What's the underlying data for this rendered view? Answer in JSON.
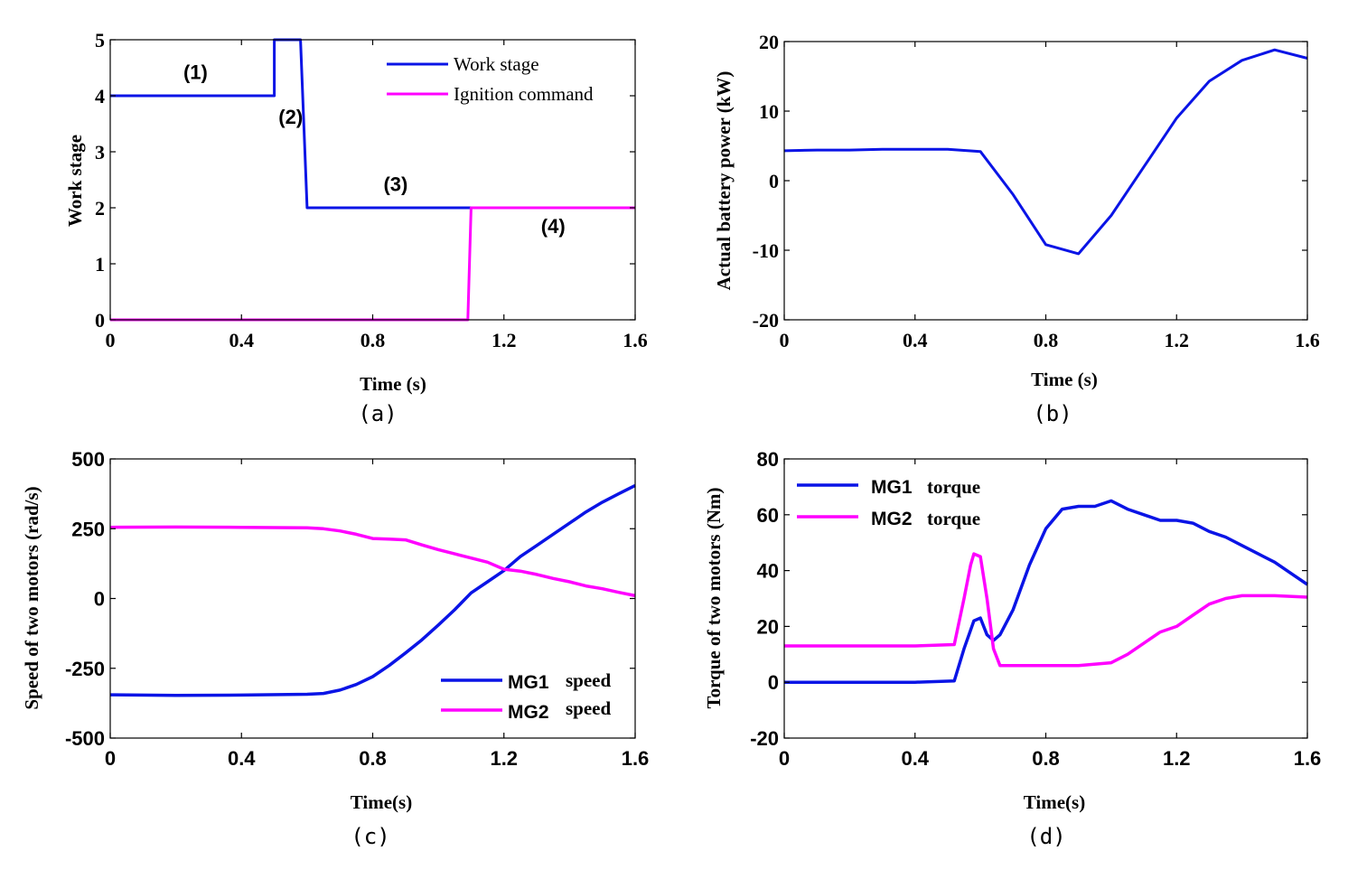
{
  "chart_data": [
    {
      "id": "a",
      "type": "line",
      "caption": "(a)",
      "xlabel": "Time (s)",
      "ylabel": "Work stage",
      "xlim": [
        0,
        1.6
      ],
      "ylim": [
        0,
        5
      ],
      "xticks": [
        "0",
        "0.4",
        "0.8",
        "1.2",
        "1.6"
      ],
      "xtick_values": [
        0,
        0.4,
        0.8,
        1.2,
        1.6
      ],
      "yticks": [
        "0",
        "1",
        "2",
        "3",
        "4",
        "5"
      ],
      "ytick_values": [
        0,
        1,
        2,
        3,
        4,
        5
      ],
      "legend_position": "top-right",
      "annotations": [
        {
          "text": "(1)",
          "x": 0.26,
          "y": 4.3
        },
        {
          "text": "(2)",
          "x": 0.55,
          "y": 3.5
        },
        {
          "text": "(3)",
          "x": 0.87,
          "y": 2.3
        },
        {
          "text": "(4)",
          "x": 1.35,
          "y": 1.55
        }
      ],
      "series": [
        {
          "name": "Work stage",
          "color": "#0a14e6",
          "x": [
            0,
            0.5,
            0.5,
            0.58,
            0.6,
            1.6
          ],
          "y": [
            4,
            4,
            5,
            5,
            2,
            2
          ]
        },
        {
          "name": "Ignition command",
          "color": "#ff00ff",
          "x": [
            0,
            1.09,
            1.1,
            1.6
          ],
          "y": [
            0,
            0,
            2,
            2
          ]
        }
      ]
    },
    {
      "id": "b",
      "type": "line",
      "caption": "(b)",
      "xlabel": "Time (s)",
      "ylabel": "Actual battery power (kW)",
      "xlim": [
        0,
        1.6
      ],
      "ylim": [
        -20,
        20
      ],
      "xticks": [
        "0",
        "0.4",
        "0.8",
        "1.2",
        "1.6"
      ],
      "xtick_values": [
        0,
        0.4,
        0.8,
        1.2,
        1.6
      ],
      "yticks": [
        "-20",
        "-10",
        "0",
        "10",
        "20"
      ],
      "ytick_values": [
        -20,
        -10,
        0,
        10,
        20
      ],
      "series": [
        {
          "name": "Battery power",
          "color": "#0a14e6",
          "x": [
            0,
            0.1,
            0.2,
            0.3,
            0.4,
            0.5,
            0.6,
            0.7,
            0.8,
            0.9,
            1.0,
            1.1,
            1.2,
            1.3,
            1.4,
            1.5,
            1.6
          ],
          "y": [
            4.3,
            4.4,
            4.4,
            4.5,
            4.5,
            4.5,
            4.2,
            -2.0,
            -9.2,
            -10.5,
            -5.0,
            2.0,
            9.0,
            14.3,
            17.3,
            18.8,
            17.6
          ]
        }
      ]
    },
    {
      "id": "c",
      "type": "line",
      "caption": "(c)",
      "xlabel": "Time(s)",
      "ylabel": "Speed of two motors (rad/s)",
      "xlim": [
        0,
        1.6
      ],
      "ylim": [
        -500,
        500
      ],
      "xticks": [
        "0",
        "0.4",
        "0.8",
        "1.2",
        "1.6"
      ],
      "xtick_values": [
        0,
        0.4,
        0.8,
        1.2,
        1.6
      ],
      "yticks": [
        "-500",
        "-250",
        "0",
        "250",
        "500"
      ],
      "ytick_values": [
        -500,
        -250,
        0,
        250,
        500
      ],
      "legend_position": "bottom-right",
      "series": [
        {
          "name": "MG1 speed",
          "name_main": "MG1",
          "name_suffix": "speed",
          "color": "#0a14e6",
          "x": [
            0,
            0.2,
            0.4,
            0.6,
            0.65,
            0.7,
            0.75,
            0.8,
            0.85,
            0.9,
            0.95,
            1.0,
            1.05,
            1.1,
            1.15,
            1.2,
            1.25,
            1.3,
            1.35,
            1.4,
            1.45,
            1.5,
            1.55,
            1.6
          ],
          "y": [
            -345,
            -347,
            -346,
            -343,
            -340,
            -328,
            -308,
            -280,
            -240,
            -195,
            -148,
            -95,
            -40,
            20,
            60,
            100,
            150,
            190,
            230,
            270,
            310,
            345,
            375,
            405
          ]
        },
        {
          "name": "MG2 speed",
          "name_main": "MG2",
          "name_suffix": "speed",
          "color": "#ff00ff",
          "x": [
            0,
            0.2,
            0.4,
            0.6,
            0.65,
            0.7,
            0.75,
            0.8,
            0.85,
            0.9,
            0.95,
            1.0,
            1.05,
            1.1,
            1.15,
            1.2,
            1.25,
            1.3,
            1.35,
            1.4,
            1.45,
            1.5,
            1.55,
            1.6
          ],
          "y": [
            255,
            256,
            255,
            253,
            250,
            242,
            230,
            215,
            213,
            210,
            192,
            175,
            160,
            145,
            130,
            105,
            98,
            86,
            72,
            60,
            45,
            35,
            22,
            10
          ]
        }
      ]
    },
    {
      "id": "d",
      "type": "line",
      "caption": "(d)",
      "xlabel": "Time(s)",
      "ylabel": "Torque of two motors (Nm)",
      "xlim": [
        0,
        1.6
      ],
      "ylim": [
        -20,
        80
      ],
      "xticks": [
        "0",
        "0.4",
        "0.8",
        "1.2",
        "1.6"
      ],
      "xtick_values": [
        0,
        0.4,
        0.8,
        1.2,
        1.6
      ],
      "yticks": [
        "-20",
        "0",
        "20",
        "40",
        "60",
        "80"
      ],
      "ytick_values": [
        -20,
        0,
        20,
        40,
        60,
        80
      ],
      "legend_position": "top-left",
      "series": [
        {
          "name": "MG1 torque",
          "name_main": "MG1",
          "name_suffix": "torque",
          "color": "#0a14e6",
          "x": [
            0,
            0.2,
            0.4,
            0.52,
            0.55,
            0.58,
            0.6,
            0.62,
            0.64,
            0.66,
            0.7,
            0.75,
            0.8,
            0.85,
            0.9,
            0.95,
            1.0,
            1.05,
            1.1,
            1.15,
            1.2,
            1.25,
            1.3,
            1.35,
            1.4,
            1.45,
            1.5,
            1.55,
            1.6
          ],
          "y": [
            0,
            0,
            0,
            0.5,
            12,
            22,
            23,
            17,
            15,
            17,
            26,
            42,
            55,
            62,
            63,
            63,
            65,
            62,
            60,
            58,
            58,
            57,
            54,
            52,
            49,
            46,
            43,
            39,
            35
          ]
        },
        {
          "name": "MG2 torque",
          "name_main": "MG2",
          "name_suffix": "torque",
          "color": "#ff00ff",
          "x": [
            0,
            0.2,
            0.4,
            0.52,
            0.55,
            0.57,
            0.58,
            0.6,
            0.62,
            0.64,
            0.66,
            0.7,
            0.8,
            0.9,
            1.0,
            1.05,
            1.1,
            1.15,
            1.2,
            1.25,
            1.3,
            1.35,
            1.4,
            1.5,
            1.6
          ],
          "y": [
            13,
            13,
            13,
            13.5,
            30,
            42,
            46,
            45,
            30,
            12,
            6,
            6,
            6,
            6,
            7,
            10,
            14,
            18,
            20,
            24,
            28,
            30,
            31,
            31,
            30.5
          ]
        }
      ]
    }
  ]
}
